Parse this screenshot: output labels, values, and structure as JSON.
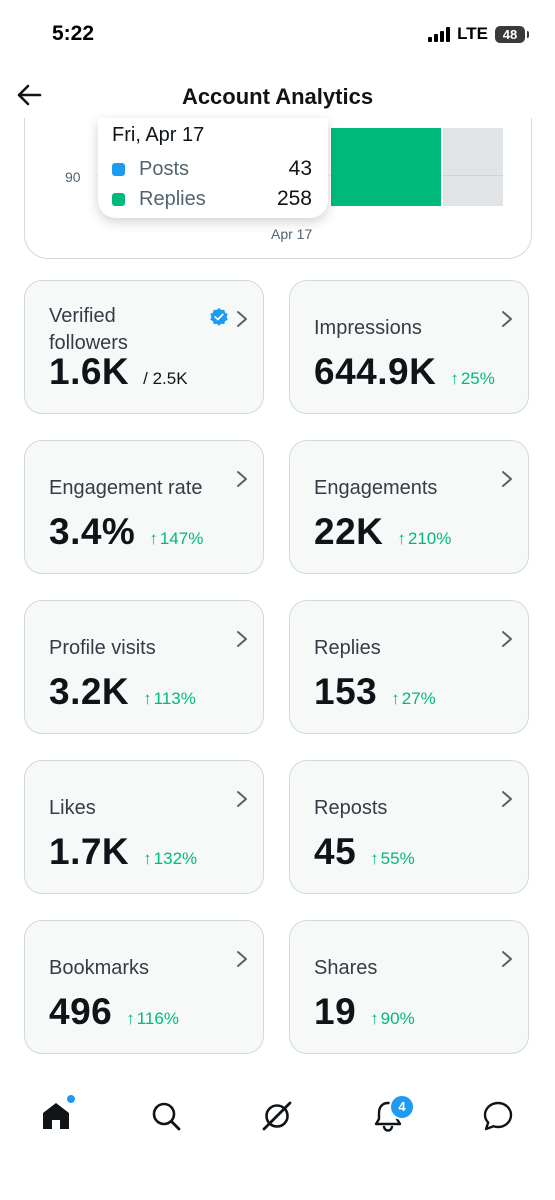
{
  "status": {
    "time": "5:22",
    "carrier": "LTE",
    "battery": "48"
  },
  "header": {
    "title": "Account Analytics"
  },
  "chart": {
    "y_tick": "90",
    "x_tick": "Apr 17",
    "tooltip": {
      "date": "Fri, Apr 17",
      "rows": [
        {
          "label": "Posts",
          "value": "43",
          "color": "#1d9bf0"
        },
        {
          "label": "Replies",
          "value": "258",
          "color": "#00ba7c"
        }
      ]
    }
  },
  "metrics": [
    {
      "label": "Verified followers",
      "value": "1.6K",
      "sub": "/ 2.5K",
      "change": ""
    },
    {
      "label": "Impressions",
      "value": "644.9K",
      "sub": "",
      "change": "25%"
    },
    {
      "label": "Engagement rate",
      "value": "3.4%",
      "sub": "",
      "change": "147%"
    },
    {
      "label": "Engagements",
      "value": "22K",
      "sub": "",
      "change": "210%"
    },
    {
      "label": "Profile visits",
      "value": "3.2K",
      "sub": "",
      "change": "113%"
    },
    {
      "label": "Replies",
      "value": "153",
      "sub": "",
      "change": "27%"
    },
    {
      "label": "Likes",
      "value": "1.7K",
      "sub": "",
      "change": "132%"
    },
    {
      "label": "Reposts",
      "value": "45",
      "sub": "",
      "change": "55%"
    },
    {
      "label": "Bookmarks",
      "value": "496",
      "sub": "",
      "change": "116%"
    },
    {
      "label": "Shares",
      "value": "19",
      "sub": "",
      "change": "90%"
    }
  ],
  "nav": {
    "items": [
      "home-icon",
      "search-icon",
      "grok-icon",
      "bell-icon",
      "messages-icon"
    ],
    "notification_count": "4"
  },
  "colors": {
    "accent": "#1d9bf0",
    "positive": "#00ba7c",
    "text": "#0f1419"
  }
}
